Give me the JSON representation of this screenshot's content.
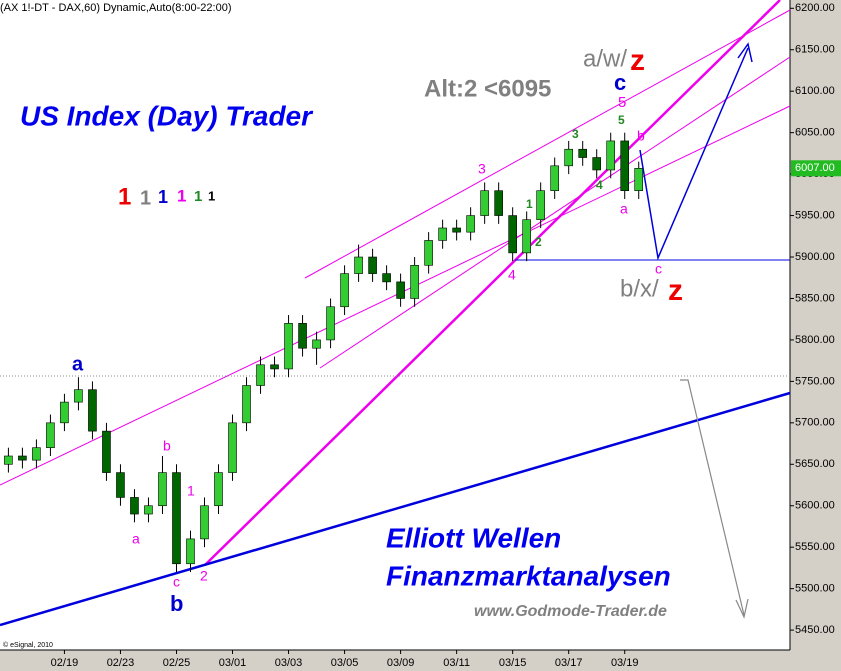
{
  "chart_data": {
    "type": "candlestick",
    "title": "(AX 1!-DT - DAX,60) Dynamic,Auto(8:00-22:00)",
    "source": "© eSignal, 2010",
    "x": [
      -2,
      -1.5,
      -1,
      -0.5,
      0,
      0.5,
      1,
      1.5,
      2,
      2.5,
      3,
      3.5,
      4,
      4.5,
      5,
      5.5,
      6,
      6.5,
      7,
      7.5,
      8,
      8.5,
      9,
      9.5,
      10,
      10.5,
      11,
      11.5,
      12,
      12.5,
      13,
      13.5,
      14,
      14.5,
      15,
      15.5,
      16,
      16.5,
      17,
      17.5,
      18,
      18.5,
      19,
      19.5,
      20,
      20.5
    ],
    "open": [
      5650,
      5660,
      5655,
      5670,
      5700,
      5725,
      5740,
      5690,
      5640,
      5610,
      5590,
      5600,
      5640,
      5530,
      5560,
      5600,
      5640,
      5700,
      5745,
      5770,
      5765,
      5820,
      5790,
      5800,
      5840,
      5880,
      5900,
      5880,
      5870,
      5850,
      5890,
      5920,
      5935,
      5930,
      5950,
      5980,
      5950,
      5905,
      5945,
      5980,
      6010,
      6030,
      6020,
      6005,
      6040,
      5980
    ],
    "high": [
      5670,
      5670,
      5680,
      5710,
      5735,
      5755,
      5750,
      5700,
      5650,
      5620,
      5610,
      5660,
      5650,
      5570,
      5610,
      5650,
      5710,
      5755,
      5780,
      5780,
      5830,
      5830,
      5810,
      5850,
      5890,
      5915,
      5910,
      5890,
      5880,
      5900,
      5930,
      5945,
      5945,
      5960,
      5990,
      5990,
      5960,
      5955,
      5990,
      6020,
      6040,
      6040,
      6030,
      6050,
      6050,
      6015
    ],
    "low": [
      5640,
      5645,
      5645,
      5660,
      5690,
      5715,
      5680,
      5630,
      5600,
      5580,
      5580,
      5590,
      5520,
      5520,
      5550,
      5590,
      5630,
      5690,
      5735,
      5755,
      5755,
      5780,
      5770,
      5790,
      5830,
      5870,
      5870,
      5860,
      5840,
      5840,
      5880,
      5910,
      5920,
      5920,
      5940,
      5940,
      5895,
      5895,
      5935,
      5970,
      6000,
      6010,
      5995,
      5995,
      5970,
      5970
    ],
    "close": [
      5660,
      5655,
      5670,
      5700,
      5725,
      5740,
      5690,
      5640,
      5610,
      5590,
      5600,
      5640,
      5530,
      5560,
      5600,
      5640,
      5700,
      5745,
      5770,
      5765,
      5820,
      5790,
      5800,
      5840,
      5880,
      5900,
      5880,
      5870,
      5850,
      5890,
      5920,
      5935,
      5930,
      5950,
      5980,
      5950,
      5905,
      5945,
      5980,
      6010,
      6030,
      6020,
      6005,
      6040,
      5980,
      6007
    ],
    "up_color": "#33cc33",
    "down_color": "#006600",
    "xlim": [
      -2.3,
      25.9
    ],
    "xticks": [
      {
        "value": 0,
        "label": "02/19"
      },
      {
        "value": 2,
        "label": "02/23"
      },
      {
        "value": 4,
        "label": "02/25"
      },
      {
        "value": 6,
        "label": "03/01"
      },
      {
        "value": 8,
        "label": "03/03"
      },
      {
        "value": 10,
        "label": "03/05"
      },
      {
        "value": 12,
        "label": "03/09"
      },
      {
        "value": 14,
        "label": "03/11"
      },
      {
        "value": 16,
        "label": "03/15"
      },
      {
        "value": 18,
        "label": "03/17"
      },
      {
        "value": 20,
        "label": "03/19"
      }
    ],
    "ylim": [
      5426,
      6210
    ],
    "yticks": [
      {
        "value": 6200,
        "label": "6200.00"
      },
      {
        "value": 6150,
        "label": "6150.00"
      },
      {
        "value": 6100,
        "label": "6100.00"
      },
      {
        "value": 6050,
        "label": "6050.00"
      },
      {
        "value": 6000,
        "label": "6000.00"
      },
      {
        "value": 5950,
        "label": "5950.00"
      },
      {
        "value": 5900,
        "label": "5900.00"
      },
      {
        "value": 5850,
        "label": "5850.00"
      },
      {
        "value": 5800,
        "label": "5800.00"
      },
      {
        "value": 5750,
        "label": "5750.00"
      },
      {
        "value": 5700,
        "label": "5700.00"
      },
      {
        "value": 5650,
        "label": "5650.00"
      },
      {
        "value": 5600,
        "label": "5600.00"
      },
      {
        "value": 5550,
        "label": "5550.00"
      },
      {
        "value": 5500,
        "label": "5500.00"
      },
      {
        "value": 5450,
        "label": "5450.00"
      }
    ],
    "last_price": {
      "value": 6007,
      "label": "6007.00"
    },
    "annotations": [
      {
        "text": "US Index (Day) Trader",
        "color": "#0000ee"
      },
      {
        "text": "Alt:2 <6095",
        "color": "#808080"
      },
      {
        "text": "a/w/",
        "color": "#808080"
      },
      {
        "text": "z",
        "color": "#ee0000"
      },
      {
        "text": "b/x/",
        "color": "#808080"
      },
      {
        "text": "z",
        "color": "#ee0000"
      },
      {
        "text": "Elliott Wellen",
        "color": "#0000ee"
      },
      {
        "text": "Finanzmarktanalysen",
        "color": "#0000ee"
      },
      {
        "text": "www.Godmode-Trader.de",
        "color": "#808080"
      },
      {
        "text": "a",
        "color": "#0000cc"
      },
      {
        "text": "b",
        "color": "#0000cc"
      },
      {
        "text": "c",
        "color": "#ee00ee"
      },
      {
        "text": "2",
        "color": "#ee00ee"
      },
      {
        "text": "a",
        "color": "#ee00ee"
      },
      {
        "text": "b",
        "color": "#ee00ee"
      },
      {
        "text": "1",
        "color": "#ee00ee"
      },
      {
        "text": "3",
        "color": "#ee00ee"
      },
      {
        "text": "4",
        "color": "#ee00ee"
      },
      {
        "text": "1",
        "color": "#228822"
      },
      {
        "text": "2",
        "color": "#228822"
      },
      {
        "text": "3",
        "color": "#228822"
      },
      {
        "text": "4",
        "color": "#228822"
      },
      {
        "text": "5",
        "color": "#228822"
      },
      {
        "text": "5",
        "color": "#ee00ee"
      },
      {
        "text": "c",
        "color": "#0000cc"
      },
      {
        "text": "b",
        "color": "#ee00ee"
      },
      {
        "text": "a",
        "color": "#ee00ee"
      },
      {
        "text": "c",
        "color": "#ee00ee"
      },
      {
        "text": "1",
        "color": "#ee0000"
      },
      {
        "text": "1",
        "color": "#808080"
      },
      {
        "text": "1",
        "color": "#0000cc"
      },
      {
        "text": "1",
        "color": "#ee00ee"
      },
      {
        "text": "1",
        "color": "#228822"
      },
      {
        "text": "1",
        "color": "#000000"
      }
    ]
  }
}
